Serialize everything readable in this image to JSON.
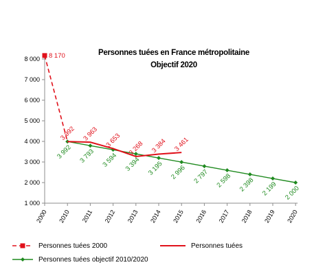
{
  "chart_data": {
    "type": "line",
    "title_line1": "Personnes tuées en France métropolitaine",
    "title_line2": "Objectif 2020",
    "categories": [
      "2000",
      "2010",
      "2011",
      "2012",
      "2013",
      "2014",
      "2015",
      "2016",
      "2017",
      "2018",
      "2019",
      "2020"
    ],
    "ylim": [
      1000,
      8000
    ],
    "yticks": [
      1000,
      2000,
      3000,
      4000,
      5000,
      6000,
      7000,
      8000
    ],
    "ytick_labels": [
      "1 000",
      "2 000",
      "3 000",
      "4 000",
      "5 000",
      "6 000",
      "7 000",
      "8 000"
    ],
    "grid": false,
    "legend_position": "bottom",
    "series": [
      {
        "name": "Personnes tuées 2000",
        "color": "#e0101a",
        "style": "dashed",
        "points": [
          {
            "x": "2000",
            "y": 8170,
            "label": "8 170"
          },
          {
            "x": "2010",
            "y": 3992,
            "label": ""
          }
        ]
      },
      {
        "name": "Personnes tuées",
        "color": "#e0101a",
        "style": "solid",
        "points": [
          {
            "x": "2010",
            "y": 3992,
            "label": "3 992"
          },
          {
            "x": "2011",
            "y": 3963,
            "label": "3 963"
          },
          {
            "x": "2012",
            "y": 3653,
            "label": "3 653"
          },
          {
            "x": "2013",
            "y": 3268,
            "label": "3 268"
          },
          {
            "x": "2014",
            "y": 3384,
            "label": "3 384"
          },
          {
            "x": "2015",
            "y": 3461,
            "label": "3 461"
          }
        ]
      },
      {
        "name": "Personnes tuées objectif 2010/2020",
        "color": "#1f8a1f",
        "style": "solid-markers",
        "points": [
          {
            "x": "2010",
            "y": 3992,
            "label": "3 992"
          },
          {
            "x": "2011",
            "y": 3793,
            "label": "3 793"
          },
          {
            "x": "2012",
            "y": 3594,
            "label": "3 594"
          },
          {
            "x": "2013",
            "y": 3394,
            "label": "3 394"
          },
          {
            "x": "2014",
            "y": 3195,
            "label": "3 195"
          },
          {
            "x": "2015",
            "y": 2996,
            "label": "2 996"
          },
          {
            "x": "2016",
            "y": 2797,
            "label": "2 797"
          },
          {
            "x": "2017",
            "y": 2598,
            "label": "2 598"
          },
          {
            "x": "2018",
            "y": 2398,
            "label": "2 398"
          },
          {
            "x": "2019",
            "y": 2199,
            "label": "2 199"
          },
          {
            "x": "2020",
            "y": 2000,
            "label": "2 000"
          }
        ]
      }
    ]
  }
}
